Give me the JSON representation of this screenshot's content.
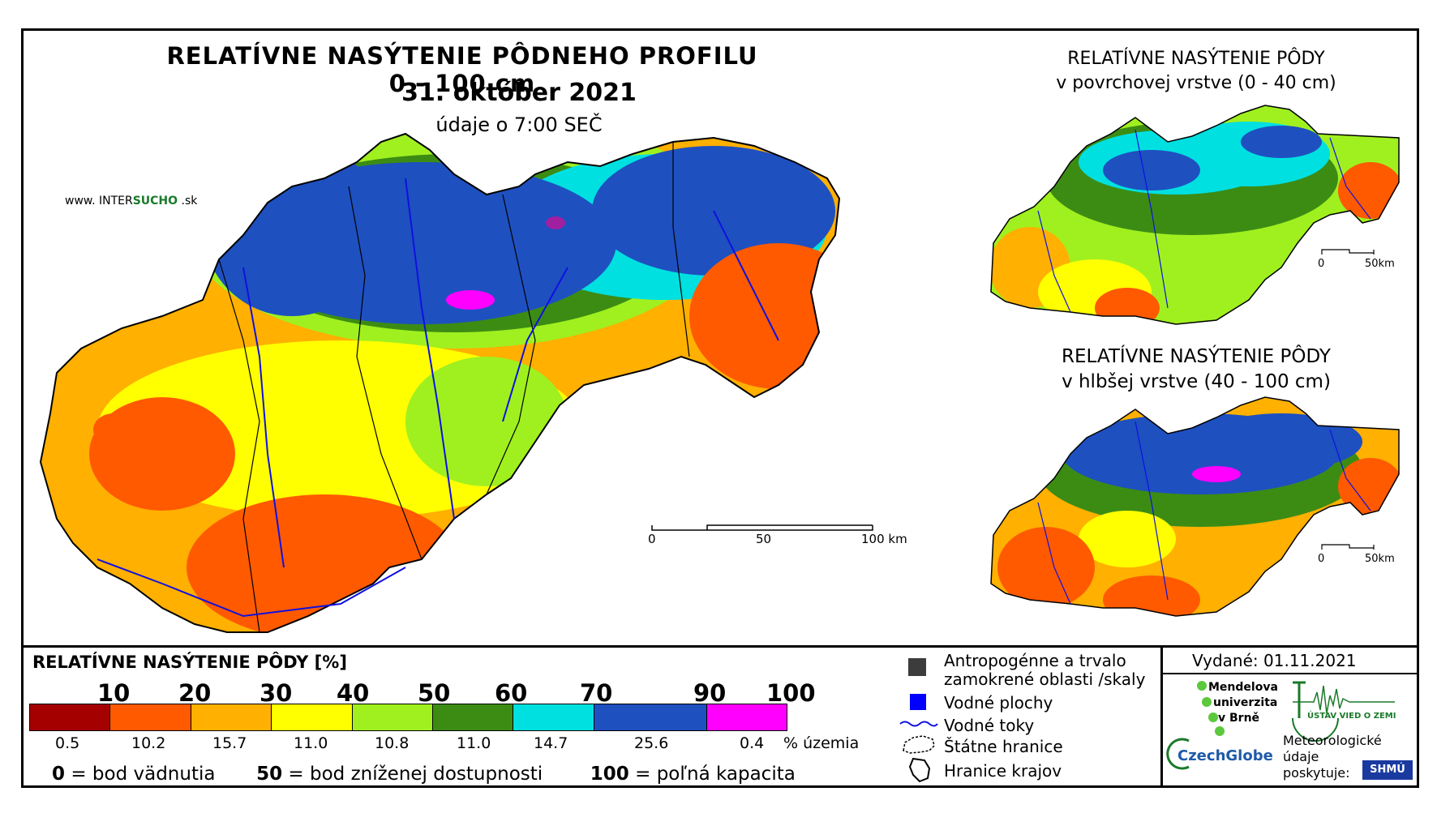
{
  "main": {
    "title": "RELATÍVNE NASÝTENIE PÔDNEHO PROFILU 0 - 100 cm",
    "date": "31. október 2021",
    "time": "údaje o 7:00 SEČ",
    "brand_prefix": "www. INTER",
    "brand_mid": "SUCHO",
    "brand_suffix": " .sk",
    "scalebar": {
      "labels": [
        "0",
        "50",
        "100 km"
      ]
    }
  },
  "inset_top": {
    "title_line1": "RELATÍVNE NASÝTENIE PÔDY",
    "title_line2": "v povrchovej vrstve (0 - 40 cm)",
    "scalebar": {
      "labels": [
        "0",
        "50km"
      ]
    }
  },
  "inset_bottom": {
    "title_line1": "RELATÍVNE NASÝTENIE PÔDY",
    "title_line2": "v hlbšej vrstve (40 - 100 cm)",
    "scalebar": {
      "labels": [
        "0",
        "50km"
      ]
    }
  },
  "legend": {
    "title": "RELATÍVNE NASÝTENIE PÔDY [%]",
    "ticks": [
      "10",
      "20",
      "30",
      "40",
      "50",
      "60",
      "70",
      "90",
      "100"
    ],
    "classes": [
      {
        "color": "#a40000",
        "percent": "0.5"
      },
      {
        "color": "#ff5a00",
        "percent": "10.2"
      },
      {
        "color": "#ffb000",
        "percent": "15.7"
      },
      {
        "color": "#ffff00",
        "percent": "11.0"
      },
      {
        "color": "#a0f020",
        "percent": "10.8"
      },
      {
        "color": "#3c8c14",
        "percent": "11.0"
      },
      {
        "color": "#00e0e0",
        "percent": "14.7"
      },
      {
        "color": "#1e50c0",
        "percent": "25.6"
      },
      {
        "color": "#ff00ff",
        "percent": "0.4"
      }
    ],
    "percent_unit": "% územia",
    "definitions": {
      "d0_num": "0",
      "d0_text": " = bod vädnutia",
      "d50_num": "50",
      "d50_text": " = bod zníženej dostupnosti",
      "d100_num": "100",
      "d100_text": " = poľná kapacita"
    }
  },
  "symbols": {
    "anthropogenic_line1": "Antropogénne a trvalo",
    "anthropogenic_line2": "zamokrené oblasti /skaly",
    "water_bodies": "Vodné plochy",
    "rivers": "Vodné toky",
    "state_border": "Štátne hranice",
    "region_border": "Hranice krajov"
  },
  "issued": "Vydané: 01.11.2021",
  "partners": {
    "mendel_line1": "Mendelova",
    "mendel_line2": "univerzita",
    "mendel_line3": "v Brně",
    "ustav": "ÚSTAV VIED O ZEMI",
    "czechglobe": "CzechGlobe",
    "meteo_line1": "Meteorologické",
    "meteo_line2": "údaje",
    "meteo_line3": "poskytuje:",
    "shmu": "SHMÚ"
  },
  "colors": {
    "river": "#1010e0",
    "water": "#0000ff",
    "anthropogenic": "#3c3c3c",
    "brand_green": "#1a7a2a"
  }
}
